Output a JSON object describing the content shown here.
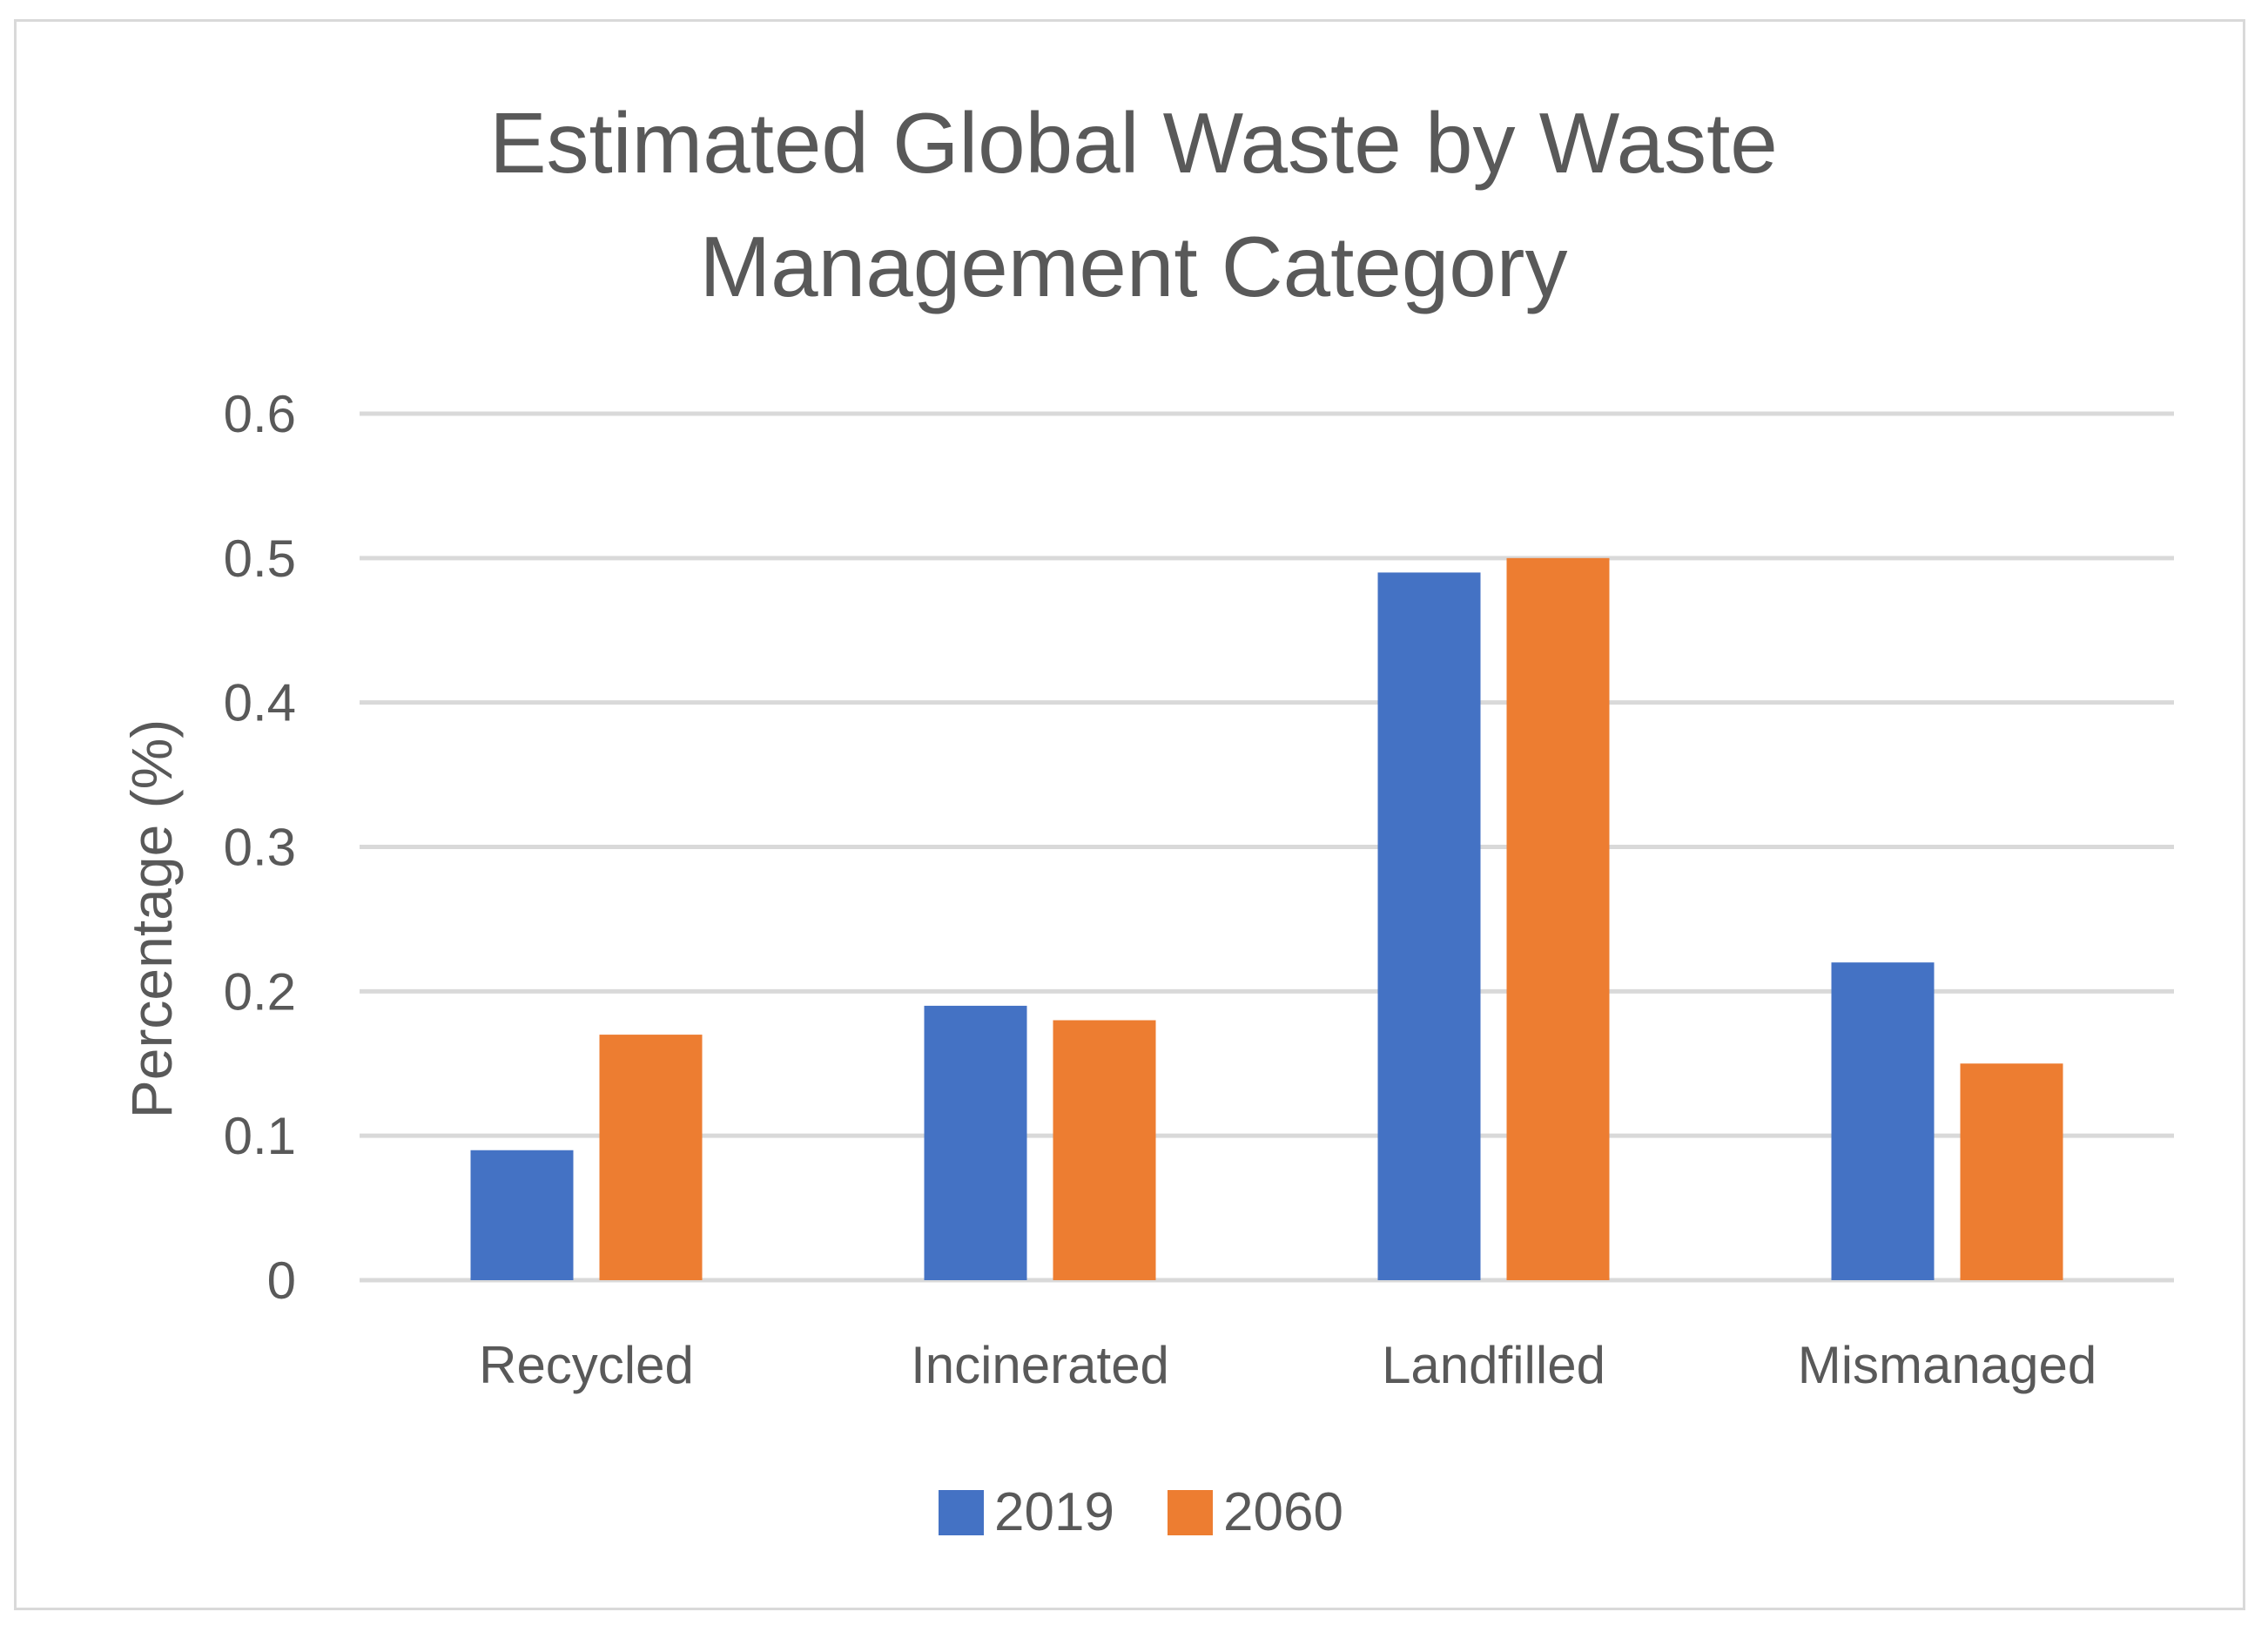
{
  "chart_data": {
    "type": "bar",
    "title_lines": [
      "Estimated Global Waste by Waste",
      "Management Category"
    ],
    "xlabel": "",
    "ylabel": "Percentage (%)",
    "categories": [
      "Recycled",
      "Incinerated",
      "Landfilled",
      "Mismanaged"
    ],
    "series": [
      {
        "name": "2019",
        "color": "#4472c4",
        "values": [
          0.09,
          0.19,
          0.49,
          0.22
        ]
      },
      {
        "name": "2060",
        "color": "#ed7d31",
        "values": [
          0.17,
          0.18,
          0.5,
          0.15
        ]
      }
    ],
    "ylim": [
      0,
      0.6
    ],
    "yticks": [
      "0",
      "0.1",
      "0.2",
      "0.3",
      "0.4",
      "0.5",
      "0.6"
    ],
    "grid": true,
    "legend_position": "bottom"
  }
}
